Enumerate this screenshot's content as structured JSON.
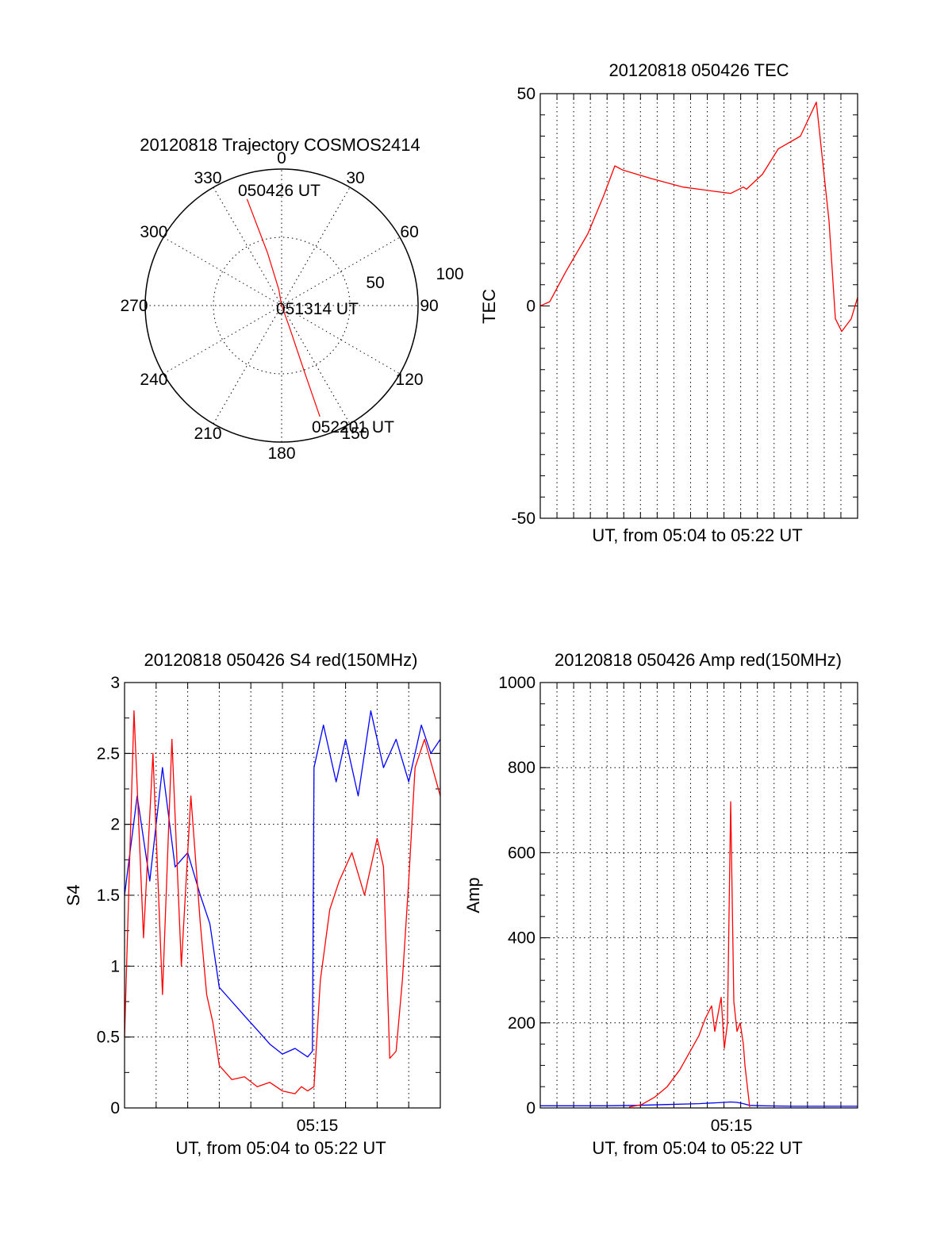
{
  "chart_data": [
    {
      "id": "polar",
      "type": "polar",
      "title": "20120818 Trajectory COSMOS2414",
      "azimuth_labels": [
        "0",
        "30",
        "60",
        "90",
        "120",
        "150",
        "180",
        "210",
        "240",
        "270",
        "300",
        "330"
      ],
      "radial_labels": [
        "50",
        "100"
      ],
      "rlim": [
        0,
        100
      ],
      "grid": true,
      "trajectory_color": "#ff0000",
      "annotations": [
        {
          "text": "050426 UT",
          "az": -18,
          "r": 86
        },
        {
          "text": "051314 UT",
          "az": 0,
          "r": 0
        },
        {
          "text": "052201 UT",
          "az": 161,
          "r": 86
        }
      ],
      "trajectory": [
        {
          "az": 342,
          "r": 82
        },
        {
          "az": 345,
          "r": 40
        },
        {
          "az": 350,
          "r": 12
        },
        {
          "az": 0,
          "r": 0
        },
        {
          "az": 160,
          "r": 16
        },
        {
          "az": 161,
          "r": 50
        },
        {
          "az": 161,
          "r": 86
        }
      ]
    },
    {
      "id": "tec",
      "type": "line",
      "title": "20120818 050426 TEC",
      "xlabel": "UT, from 05:04 to 05:22 UT",
      "ylabel": "TEC",
      "xlim": [
        0,
        1
      ],
      "ylim": [
        -50,
        50
      ],
      "yticks": [
        "-50",
        "0",
        "50"
      ],
      "grid": "vertical",
      "series": [
        {
          "color": "#ff0000",
          "x": [
            0,
            0.03,
            0.08,
            0.15,
            0.2,
            0.235,
            0.26,
            0.35,
            0.45,
            0.55,
            0.6,
            0.64,
            0.65,
            0.7,
            0.75,
            0.82,
            0.87,
            0.91,
            0.93,
            0.95,
            0.98,
            1.0
          ],
          "y": [
            0,
            1,
            8,
            17,
            26,
            33,
            32,
            30,
            28,
            27,
            26.5,
            28,
            27.5,
            31,
            37,
            40,
            48,
            20,
            -3,
            -6,
            -3,
            2
          ]
        }
      ]
    },
    {
      "id": "s4",
      "type": "line",
      "title": "20120818 050426 S4 red(150MHz)",
      "xlabel": "UT, from 05:04 to 05:22 UT",
      "ylabel": "S4",
      "xlim": [
        0,
        1
      ],
      "ylim": [
        0,
        3
      ],
      "yticks": [
        "0",
        "0.5",
        "1",
        "1.5",
        "2",
        "2.5",
        "3"
      ],
      "xtick_label": {
        "text": "05:15",
        "x": 0.6
      },
      "grid": "both",
      "series": [
        {
          "color": "#0000ff",
          "x": [
            0,
            0.04,
            0.08,
            0.12,
            0.16,
            0.2,
            0.24,
            0.27,
            0.3,
            0.34,
            0.38,
            0.42,
            0.46,
            0.5,
            0.54,
            0.58,
            0.595,
            0.6,
            0.63,
            0.67,
            0.7,
            0.74,
            0.78,
            0.82,
            0.86,
            0.9,
            0.94,
            0.97,
            1.0
          ],
          "y": [
            1.5,
            2.2,
            1.6,
            2.4,
            1.7,
            1.8,
            1.5,
            1.3,
            0.85,
            0.75,
            0.65,
            0.55,
            0.45,
            0.38,
            0.42,
            0.36,
            0.4,
            2.4,
            2.7,
            2.3,
            2.6,
            2.2,
            2.8,
            2.4,
            2.6,
            2.3,
            2.7,
            2.5,
            2.6
          ]
        },
        {
          "color": "#ff0000",
          "x": [
            0,
            0.03,
            0.06,
            0.09,
            0.12,
            0.15,
            0.18,
            0.21,
            0.24,
            0.26,
            0.28,
            0.3,
            0.34,
            0.38,
            0.42,
            0.46,
            0.5,
            0.54,
            0.56,
            0.58,
            0.6,
            0.62,
            0.65,
            0.68,
            0.72,
            0.76,
            0.8,
            0.82,
            0.84,
            0.86,
            0.88,
            0.9,
            0.92,
            0.95,
            1.0
          ],
          "y": [
            0.5,
            2.8,
            1.2,
            2.5,
            0.8,
            2.6,
            1.0,
            2.2,
            1.3,
            0.8,
            0.6,
            0.3,
            0.2,
            0.22,
            0.15,
            0.18,
            0.12,
            0.1,
            0.15,
            0.12,
            0.15,
            0.9,
            1.4,
            1.6,
            1.8,
            1.5,
            1.9,
            1.7,
            0.35,
            0.4,
            0.9,
            1.6,
            2.4,
            2.6,
            2.2
          ]
        }
      ]
    },
    {
      "id": "amp",
      "type": "line",
      "title": "20120818 050426 Amp red(150MHz)",
      "xlabel": "UT, from 05:04 to 05:22 UT",
      "ylabel": "Amp",
      "xlim": [
        0,
        1
      ],
      "ylim": [
        0,
        1000
      ],
      "yticks": [
        "0",
        "200",
        "400",
        "600",
        "800",
        "1000"
      ],
      "xtick_label": {
        "text": "05:15",
        "x": 0.6
      },
      "grid": "both",
      "series": [
        {
          "color": "#0000ff",
          "x": [
            0,
            0.2,
            0.3,
            0.4,
            0.5,
            0.55,
            0.6,
            0.62,
            0.64,
            0.66,
            0.7,
            0.8,
            0.9,
            1.0
          ],
          "y": [
            5,
            5,
            6,
            8,
            10,
            12,
            14,
            13,
            10,
            6,
            5,
            4,
            4,
            4
          ]
        },
        {
          "color": "#ff0000",
          "x": [
            0.28,
            0.32,
            0.36,
            0.4,
            0.44,
            0.47,
            0.5,
            0.52,
            0.54,
            0.55,
            0.56,
            0.57,
            0.58,
            0.59,
            0.6,
            0.61,
            0.62,
            0.63,
            0.64,
            0.645,
            0.66
          ],
          "y": [
            2,
            8,
            25,
            50,
            90,
            130,
            170,
            210,
            240,
            180,
            220,
            260,
            140,
            200,
            720,
            250,
            180,
            200,
            150,
            100,
            2
          ]
        }
      ]
    }
  ]
}
